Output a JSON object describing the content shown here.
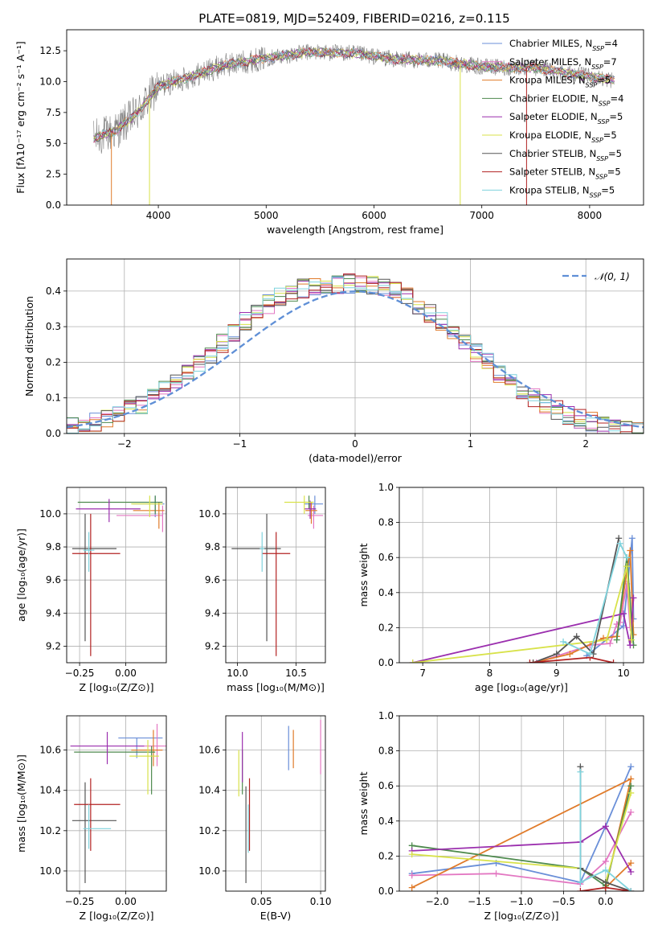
{
  "figure_title": "PLATE=0819, MJD=52409, FIBERID=0216, z=0.115",
  "colors": {
    "Chabrier MILES": "#6a8fd8",
    "Salpeter MILES": "#e377c2",
    "Kroupa MILES": "#e07b2a",
    "Chabrier ELODIE": "#4e8a4e",
    "Salpeter ELODIE": "#9b2fae",
    "Kroupa ELODIE": "#d8e24a",
    "Chabrier STELIB": "#555555",
    "Salpeter STELIB": "#b22222",
    "Kroupa STELIB": "#7fd3dd",
    "data": "#808080",
    "normal": "#5f8fd6"
  },
  "chart_data": [
    {
      "id": "spectrum",
      "type": "line",
      "xlabel": "wavelength [Angstrom, rest frame]",
      "ylabel": "Flux [fλ10⁻¹⁷ erg cm⁻² s⁻¹ A⁻¹]",
      "xlim": [
        3150,
        8500
      ],
      "ylim": [
        0,
        14.2
      ],
      "xticks": [
        4000,
        5000,
        6000,
        7000,
        8000
      ],
      "yticks": [
        0.0,
        2.5,
        5.0,
        7.5,
        10.0,
        12.5
      ],
      "legend": [
        "Chabrier MILES, N_SSP=4",
        "Salpeter MILES, N_SSP=7",
        "Kroupa MILES, N_SSP=5",
        "Chabrier ELODIE, N_SSP=4",
        "Salpeter ELODIE, N_SSP=5",
        "Kroupa ELODIE, N_SSP=5",
        "Chabrier STELIB, N_SSP=5",
        "Salpeter STELIB, N_SSP=5",
        "Kroupa STELIB, N_SSP=5"
      ],
      "legend_placement": "top-right",
      "continuum_knots": [
        [
          3400,
          5.4
        ],
        [
          3600,
          6.0
        ],
        [
          3800,
          7.4
        ],
        [
          4000,
          9.6
        ],
        [
          4300,
          10.4
        ],
        [
          4600,
          11.3
        ],
        [
          5000,
          11.9
        ],
        [
          5400,
          12.4
        ],
        [
          5800,
          12.3
        ],
        [
          6200,
          11.8
        ],
        [
          6600,
          11.7
        ],
        [
          7000,
          11.2
        ],
        [
          7500,
          11.1
        ],
        [
          8000,
          10.4
        ],
        [
          8230,
          10.1
        ]
      ],
      "wavelength_range": [
        3400,
        8230
      ],
      "drops": [
        {
          "x": 3565,
          "series": "Salpeter STELIB",
          "color": "#e07b2a"
        },
        {
          "x": 3918,
          "series": "Kroupa ELODIE",
          "color": "#d8e24a"
        },
        {
          "x": 6800,
          "series": "Kroupa ELODIE",
          "color": "#d8e24a"
        },
        {
          "x": 7415,
          "series": "Salpeter STELIB",
          "color": "#b22222"
        }
      ]
    },
    {
      "id": "residuals",
      "type": "histogram",
      "xlabel": "(data-model)/error",
      "ylabel": "Normed distribution",
      "xlim": [
        -2.5,
        2.5
      ],
      "ylim": [
        0,
        0.49
      ],
      "xticks": [
        -2,
        -1,
        0,
        1,
        2
      ],
      "yticks": [
        0.0,
        0.1,
        0.2,
        0.3,
        0.4
      ],
      "grid": true,
      "legend": [
        "𝒩(0, 1)"
      ],
      "legend_placement": "top-right",
      "bin_edges_start": -2.5,
      "bin_width": 0.1,
      "base_values": [
        0.018,
        0.025,
        0.033,
        0.043,
        0.055,
        0.068,
        0.083,
        0.101,
        0.121,
        0.144,
        0.169,
        0.196,
        0.224,
        0.254,
        0.284,
        0.313,
        0.34,
        0.364,
        0.384,
        0.398,
        0.407,
        0.412,
        0.415,
        0.418,
        0.421,
        0.42,
        0.418,
        0.41,
        0.398,
        0.382,
        0.362,
        0.339,
        0.313,
        0.285,
        0.256,
        0.227,
        0.199,
        0.171,
        0.145,
        0.122,
        0.101,
        0.083,
        0.067,
        0.053,
        0.042,
        0.033,
        0.026,
        0.02,
        0.016,
        0.013
      ]
    },
    {
      "id": "age_vs_Z",
      "type": "errorbar",
      "xlabel": "Z [log₁₀(Z/Z⊙)]",
      "ylabel": "age  [log₁₀(age/yr)]",
      "xlim": [
        -0.32,
        0.22
      ],
      "ylim": [
        9.1,
        10.16
      ],
      "xticks": [
        -0.25,
        0.0
      ],
      "yticks": [
        9.2,
        9.4,
        9.6,
        9.8,
        10.0
      ],
      "grid": true,
      "points": [
        {
          "series": "Chabrier MILES",
          "x": 0.16,
          "xerr": [
            0.12,
            0.05
          ],
          "y": 10.06,
          "yerr": [
            0.08,
            0.05
          ]
        },
        {
          "series": "Salpeter MILES",
          "x": 0.2,
          "xerr": [
            0.25,
            0.0
          ],
          "y": 9.99,
          "yerr": [
            0.1,
            0.06
          ]
        },
        {
          "series": "Kroupa MILES",
          "x": 0.18,
          "xerr": [
            0.14,
            0.03
          ],
          "y": 10.02,
          "yerr": [
            0.11,
            0.05
          ]
        },
        {
          "series": "Chabrier ELODIE",
          "x": 0.16,
          "xerr": [
            0.42,
            0.04
          ],
          "y": 10.07,
          "yerr": [
            0.07,
            0.04
          ]
        },
        {
          "series": "Salpeter ELODIE",
          "x": -0.09,
          "xerr": [
            0.18,
            0.17
          ],
          "y": 10.03,
          "yerr": [
            0.08,
            0.06
          ]
        },
        {
          "series": "Kroupa ELODIE",
          "x": 0.13,
          "xerr": [
            0.1,
            0.07
          ],
          "y": 10.06,
          "yerr": [
            0.08,
            0.05
          ]
        },
        {
          "series": "Chabrier STELIB",
          "x": -0.22,
          "xerr": [
            0.07,
            0.17
          ],
          "y": 9.79,
          "yerr": [
            0.56,
            0.21
          ]
        },
        {
          "series": "Salpeter STELIB",
          "x": -0.19,
          "xerr": [
            0.1,
            0.16
          ],
          "y": 9.76,
          "yerr": [
            0.62,
            0.24
          ]
        },
        {
          "series": "Kroupa STELIB",
          "x": -0.2,
          "xerr": [
            0.03,
            0.03
          ],
          "y": 9.78,
          "yerr": [
            0.13,
            0.11
          ]
        }
      ]
    },
    {
      "id": "age_vs_mass",
      "type": "errorbar",
      "xlabel": "mass [log₁₀(M/M⊙)]",
      "ylabel": "",
      "xlim": [
        9.9,
        10.75
      ],
      "ylim": [
        9.1,
        10.16
      ],
      "xticks": [
        10.0,
        10.5
      ],
      "yticks": [
        9.2,
        9.4,
        9.6,
        9.8,
        10.0
      ],
      "grid": true,
      "points": [
        {
          "series": "Chabrier MILES",
          "x": 10.66,
          "xerr": [
            0.09,
            0.07
          ],
          "y": 10.06,
          "yerr": [
            0.06,
            0.05
          ]
        },
        {
          "series": "Salpeter MILES",
          "x": 10.65,
          "xerr": [
            0.05,
            0.08
          ],
          "y": 9.99,
          "yerr": [
            0.08,
            0.06
          ]
        },
        {
          "series": "Kroupa MILES",
          "x": 10.63,
          "xerr": [
            0.05,
            0.05
          ],
          "y": 10.02,
          "yerr": [
            0.08,
            0.05
          ]
        },
        {
          "series": "Chabrier ELODIE",
          "x": 10.61,
          "xerr": [
            0.04,
            0.04
          ],
          "y": 10.07,
          "yerr": [
            0.04,
            0.04
          ]
        },
        {
          "series": "Salpeter ELODIE",
          "x": 10.62,
          "xerr": [
            0.05,
            0.05
          ],
          "y": 10.03,
          "yerr": [
            0.06,
            0.05
          ]
        },
        {
          "series": "Kroupa ELODIE",
          "x": 10.57,
          "xerr": [
            0.17,
            0.08
          ],
          "y": 10.07,
          "yerr": [
            0.07,
            0.04
          ]
        },
        {
          "series": "Chabrier STELIB",
          "x": 10.25,
          "xerr": [
            0.3,
            0.12
          ],
          "y": 9.79,
          "yerr": [
            0.56,
            0.21
          ]
        },
        {
          "series": "Salpeter STELIB",
          "x": 10.33,
          "xerr": [
            0.12,
            0.12
          ],
          "y": 9.76,
          "yerr": [
            0.62,
            0.13
          ]
        },
        {
          "series": "Kroupa STELIB",
          "x": 10.21,
          "xerr": [
            0.02,
            0.02
          ],
          "y": 9.79,
          "yerr": [
            0.14,
            0.1
          ]
        }
      ]
    },
    {
      "id": "weight_vs_age",
      "type": "line",
      "xlabel": "age  [log₁₀(age/yr)]",
      "ylabel": "mass weight",
      "xlim": [
        6.65,
        10.3
      ],
      "ylim": [
        0,
        1.0
      ],
      "xticks": [
        7,
        8,
        9,
        10
      ],
      "yticks": [
        0.0,
        0.2,
        0.4,
        0.6,
        0.8,
        1.0
      ],
      "grid": true,
      "series": [
        {
          "name": "Chabrier MILES",
          "x": [
            9.45,
            10.0,
            10.13,
            10.15
          ],
          "y": [
            0.04,
            0.21,
            0.71,
            0.25
          ]
        },
        {
          "name": "Salpeter MILES",
          "x": [
            8.7,
            9.5,
            9.8,
            9.9,
            9.95,
            10.05,
            10.1
          ],
          "y": [
            0.0,
            0.1,
            0.11,
            0.22,
            0.23,
            0.45,
            0.2
          ]
        },
        {
          "name": "Kroupa MILES",
          "x": [
            8.65,
            9.2,
            9.7,
            9.9,
            10.1,
            10.15
          ],
          "y": [
            0.0,
            0.05,
            0.14,
            0.15,
            0.64,
            0.16
          ]
        },
        {
          "name": "Chabrier ELODIE",
          "x": [
            9.9,
            10.05,
            10.15
          ],
          "y": [
            0.13,
            0.6,
            0.1
          ]
        },
        {
          "name": "Salpeter ELODIE",
          "x": [
            6.85,
            10.0,
            10.1,
            10.15
          ],
          "y": [
            0.0,
            0.28,
            0.1,
            0.37
          ]
        },
        {
          "name": "Kroupa ELODIE",
          "x": [
            6.85,
            9.75,
            10.05,
            10.12
          ],
          "y": [
            0.0,
            0.13,
            0.55,
            0.13
          ]
        },
        {
          "name": "Chabrier STELIB",
          "x": [
            8.65,
            9.0,
            9.3,
            9.55,
            9.93
          ],
          "y": [
            0.0,
            0.05,
            0.15,
            0.05,
            0.71
          ]
        },
        {
          "name": "Salpeter STELIB",
          "x": [
            8.6,
            9.5,
            9.85
          ],
          "y": [
            0.0,
            0.03,
            0.0
          ]
        },
        {
          "name": "Kroupa STELIB",
          "x": [
            9.1,
            9.5,
            9.95,
            10.05
          ],
          "y": [
            0.12,
            0.05,
            0.68,
            0.6
          ]
        }
      ]
    },
    {
      "id": "mass_vs_Z",
      "type": "errorbar",
      "xlabel": "Z [log₁₀(Z/Z⊙)]",
      "ylabel": "mass [log₁₀(M/M⊙)]",
      "xlim": [
        -0.32,
        0.22
      ],
      "ylim": [
        9.9,
        10.77
      ],
      "xticks": [
        -0.25,
        0.0
      ],
      "yticks": [
        10.0,
        10.2,
        10.4,
        10.6
      ],
      "grid": true,
      "points": [
        {
          "series": "Chabrier MILES",
          "x": 0.06,
          "xerr": [
            0.1,
            0.14
          ],
          "y": 10.66,
          "yerr": [
            0.1,
            0.0
          ]
        },
        {
          "series": "Salpeter MILES",
          "x": 0.17,
          "xerr": [
            0.1,
            0.05
          ],
          "y": 10.62,
          "yerr": [
            0.1,
            0.11
          ]
        },
        {
          "series": "Kroupa MILES",
          "x": 0.15,
          "xerr": [
            0.12,
            0.05
          ],
          "y": 10.6,
          "yerr": [
            0.08,
            0.1
          ]
        },
        {
          "series": "Chabrier ELODIE",
          "x": 0.14,
          "xerr": [
            0.42,
            0.02
          ],
          "y": 10.59,
          "yerr": [
            0.21,
            0.03
          ]
        },
        {
          "series": "Salpeter ELODIE",
          "x": -0.1,
          "xerr": [
            0.2,
            0.2
          ],
          "y": 10.62,
          "yerr": [
            0.09,
            0.07
          ]
        },
        {
          "series": "Kroupa ELODIE",
          "x": 0.12,
          "xerr": [
            0.1,
            0.06
          ],
          "y": 10.57,
          "yerr": [
            0.19,
            0.08
          ]
        },
        {
          "series": "Chabrier STELIB",
          "x": -0.22,
          "xerr": [
            0.07,
            0.17
          ],
          "y": 10.25,
          "yerr": [
            0.31,
            0.19
          ]
        },
        {
          "series": "Salpeter STELIB",
          "x": -0.19,
          "xerr": [
            0.09,
            0.16
          ],
          "y": 10.33,
          "yerr": [
            0.23,
            0.13
          ]
        },
        {
          "series": "Kroupa STELIB",
          "x": -0.2,
          "xerr": [
            0.03,
            0.12
          ],
          "y": 10.21,
          "yerr": [
            0.1,
            0.12
          ]
        }
      ]
    },
    {
      "id": "mass_vs_EBV",
      "type": "errorbar",
      "xlabel": "E(B-V)",
      "ylabel": "",
      "xlim": [
        0.02,
        0.104
      ],
      "ylim": [
        9.9,
        10.77
      ],
      "xticks": [
        0.05,
        0.1
      ],
      "yticks": [
        10.0,
        10.2,
        10.4,
        10.6
      ],
      "grid": true,
      "points": [
        {
          "series": "Chabrier MILES",
          "x": 0.073,
          "xerr": [
            0,
            0
          ],
          "y": 10.61,
          "yerr": [
            0.11,
            0.11
          ]
        },
        {
          "series": "Salpeter MILES",
          "x": 0.1,
          "xerr": [
            0,
            0
          ],
          "y": 10.6,
          "yerr": [
            0.12,
            0.15
          ]
        },
        {
          "series": "Kroupa MILES",
          "x": 0.077,
          "xerr": [
            0,
            0
          ],
          "y": 10.6,
          "yerr": [
            0.09,
            0.1
          ]
        },
        {
          "series": "Chabrier ELODIE",
          "x": 0.034,
          "xerr": [
            0,
            0
          ],
          "y": 10.5,
          "yerr": [
            0.12,
            0.1
          ]
        },
        {
          "series": "Salpeter ELODIE",
          "x": 0.034,
          "xerr": [
            0,
            0
          ],
          "y": 10.56,
          "yerr": [
            0.12,
            0.13
          ]
        },
        {
          "series": "Kroupa ELODIE",
          "x": 0.031,
          "xerr": [
            0,
            0
          ],
          "y": 10.48,
          "yerr": [
            0.11,
            0.12
          ]
        },
        {
          "series": "Chabrier STELIB",
          "x": 0.037,
          "xerr": [
            0,
            0
          ],
          "y": 10.2,
          "yerr": [
            0.26,
            0.22
          ]
        },
        {
          "series": "Salpeter STELIB",
          "x": 0.04,
          "xerr": [
            0,
            0
          ],
          "y": 10.28,
          "yerr": [
            0.18,
            0.18
          ]
        },
        {
          "series": "Kroupa STELIB",
          "x": 0.039,
          "xerr": [
            0,
            0
          ],
          "y": 10.21,
          "yerr": [
            0.12,
            0.12
          ]
        }
      ]
    },
    {
      "id": "weight_vs_Z",
      "type": "line",
      "xlabel": "Z [log₁₀(Z/Z⊙)]",
      "ylabel": "mass weight",
      "xlim": [
        -2.45,
        0.45
      ],
      "ylim": [
        0,
        1.0
      ],
      "xticks": [
        -2.0,
        -1.5,
        -1.0,
        -0.5,
        0.0
      ],
      "yticks": [
        0.0,
        0.2,
        0.4,
        0.6,
        0.8,
        1.0
      ],
      "grid": true,
      "series": [
        {
          "name": "Chabrier MILES",
          "x": [
            -2.3,
            -1.3,
            -0.3,
            0.0,
            0.3
          ],
          "y": [
            0.1,
            0.16,
            0.05,
            0.37,
            0.71
          ]
        },
        {
          "name": "Salpeter MILES",
          "x": [
            -2.3,
            -1.3,
            -0.3,
            0.0,
            0.3
          ],
          "y": [
            0.09,
            0.1,
            0.04,
            0.17,
            0.45
          ]
        },
        {
          "name": "Kroupa MILES",
          "x": [
            -2.3,
            0.3,
            0.0,
            0.3
          ],
          "y": [
            0.02,
            0.64,
            0.02,
            0.16
          ]
        },
        {
          "name": "Chabrier ELODIE",
          "x": [
            -2.3,
            -0.3,
            0.0,
            0.3
          ],
          "y": [
            0.26,
            0.13,
            0.03,
            0.6
          ]
        },
        {
          "name": "Salpeter ELODIE",
          "x": [
            -2.3,
            -0.3,
            0.0,
            0.3
          ],
          "y": [
            0.23,
            0.28,
            0.37,
            0.11
          ]
        },
        {
          "name": "Kroupa ELODIE",
          "x": [
            -2.3,
            -0.3,
            0.0,
            0.3
          ],
          "y": [
            0.21,
            0.13,
            0.05,
            0.56
          ]
        },
        {
          "name": "Chabrier STELIB",
          "x": [
            -0.3,
            -0.3,
            0.0,
            0.3
          ],
          "y": [
            0.71,
            0.13,
            0.05,
            0.0
          ]
        },
        {
          "name": "Salpeter STELIB",
          "x": [
            -0.3,
            0.0,
            0.3
          ],
          "y": [
            0.0,
            0.02,
            0.0
          ]
        },
        {
          "name": "Kroupa STELIB",
          "x": [
            -0.3,
            -0.3,
            0.0,
            0.3
          ],
          "y": [
            0.68,
            0.05,
            0.12,
            0.0
          ]
        }
      ]
    }
  ]
}
